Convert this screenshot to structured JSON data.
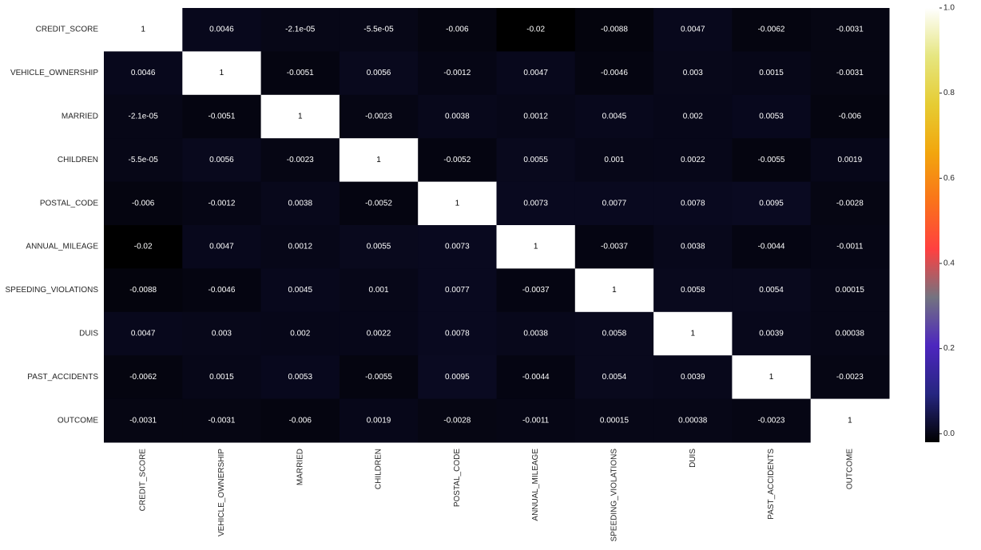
{
  "chart_data": {
    "type": "heatmap",
    "title": "",
    "xlabel": "",
    "ylabel": "",
    "rows": [
      "CREDIT_SCORE",
      "VEHICLE_OWNERSHIP",
      "MARRIED",
      "CHILDREN",
      "POSTAL_CODE",
      "ANNUAL_MILEAGE",
      "SPEEDING_VIOLATIONS",
      "DUIS",
      "PAST_ACCIDENTS",
      "OUTCOME"
    ],
    "columns": [
      "CREDIT_SCORE",
      "VEHICLE_OWNERSHIP",
      "MARRIED",
      "CHILDREN",
      "POSTAL_CODE",
      "ANNUAL_MILEAGE",
      "SPEEDING_VIOLATIONS",
      "DUIS",
      "PAST_ACCIDENTS",
      "OUTCOME"
    ],
    "values": [
      [
        1,
        0.0046,
        -2.1e-05,
        -5.5e-05,
        -0.006,
        -0.02,
        -0.0088,
        0.0047,
        -0.0062,
        -0.0031
      ],
      [
        0.0046,
        1,
        -0.0051,
        0.0056,
        -0.0012,
        0.0047,
        -0.0046,
        0.003,
        0.0015,
        -0.0031
      ],
      [
        -2.1e-05,
        -0.0051,
        1,
        -0.0023,
        0.0038,
        0.0012,
        0.0045,
        0.002,
        0.0053,
        -0.006
      ],
      [
        -5.5e-05,
        0.0056,
        -0.0023,
        1,
        -0.0052,
        0.0055,
        0.001,
        0.0022,
        -0.0055,
        0.0019
      ],
      [
        -0.006,
        -0.0012,
        0.0038,
        -0.0052,
        1,
        0.0073,
        0.0077,
        0.0078,
        0.0095,
        -0.0028
      ],
      [
        -0.02,
        0.0047,
        0.0012,
        0.0055,
        0.0073,
        1,
        -0.0037,
        0.0038,
        -0.0044,
        -0.0011
      ],
      [
        -0.0088,
        -0.0046,
        0.0045,
        0.001,
        0.0077,
        -0.0037,
        1,
        0.0058,
        0.0054,
        0.00015
      ],
      [
        0.0047,
        0.003,
        0.002,
        0.0022,
        0.0078,
        0.0038,
        0.0058,
        1,
        0.0039,
        0.00038
      ],
      [
        -0.0062,
        0.0015,
        0.0053,
        -0.0055,
        0.0095,
        -0.0044,
        0.0054,
        0.0039,
        1,
        -0.0023
      ],
      [
        -0.0031,
        -0.0031,
        -0.006,
        0.0019,
        -0.0028,
        -0.0011,
        0.00015,
        0.00038,
        -0.0023,
        1
      ]
    ],
    "annotations": [
      [
        "1",
        "0.0046",
        "-2.1e-05",
        "-5.5e-05",
        "-0.006",
        "-0.02",
        "-0.0088",
        "0.0047",
        "-0.0062",
        "-0.0031"
      ],
      [
        "0.0046",
        "1",
        "-0.0051",
        "0.0056",
        "-0.0012",
        "0.0047",
        "-0.0046",
        "0.003",
        "0.0015",
        "-0.0031"
      ],
      [
        "-2.1e-05",
        "-0.0051",
        "1",
        "-0.0023",
        "0.0038",
        "0.0012",
        "0.0045",
        "0.002",
        "0.0053",
        "-0.006"
      ],
      [
        "-5.5e-05",
        "0.0056",
        "-0.0023",
        "1",
        "-0.0052",
        "0.0055",
        "0.001",
        "0.0022",
        "-0.0055",
        "0.0019"
      ],
      [
        "-0.006",
        "-0.0012",
        "0.0038",
        "-0.0052",
        "1",
        "0.0073",
        "0.0077",
        "0.0078",
        "0.0095",
        "-0.0028"
      ],
      [
        "-0.02",
        "0.0047",
        "0.0012",
        "0.0055",
        "0.0073",
        "1",
        "-0.0037",
        "0.0038",
        "-0.0044",
        "-0.0011"
      ],
      [
        "-0.0088",
        "-0.0046",
        "0.0045",
        "0.001",
        "0.0077",
        "-0.0037",
        "1",
        "0.0058",
        "0.0054",
        "0.00015"
      ],
      [
        "0.0047",
        "0.003",
        "0.002",
        "0.0022",
        "0.0078",
        "0.0038",
        "0.0058",
        "1",
        "0.0039",
        "0.00038"
      ],
      [
        "-0.0062",
        "0.0015",
        "0.0053",
        "-0.0055",
        "0.0095",
        "-0.0044",
        "0.0054",
        "0.0039",
        "1",
        "-0.0023"
      ],
      [
        "-0.0031",
        "-0.0031",
        "-0.006",
        "0.0019",
        "-0.0028",
        "-0.0011",
        "0.00015",
        "0.00038",
        "-0.0023",
        "1"
      ]
    ],
    "colormap": "CMRmap",
    "colorbar": {
      "range": [
        -0.02,
        1
      ],
      "ticks": [
        0.0,
        0.2,
        0.4,
        0.6,
        0.8,
        1.0
      ],
      "tick_labels": [
        "0.0",
        "0.2",
        "0.4",
        "0.6",
        "0.8",
        "1.0"
      ]
    },
    "colorbar_stops": [
      "#000000",
      "#262680",
      "#4d26bf",
      "#737380",
      "#ff4040",
      "#fa731a",
      "#f2a60d",
      "#e6cc33",
      "#e6e680",
      "#ffffff"
    ],
    "annotation_color": "#ffffff"
  }
}
